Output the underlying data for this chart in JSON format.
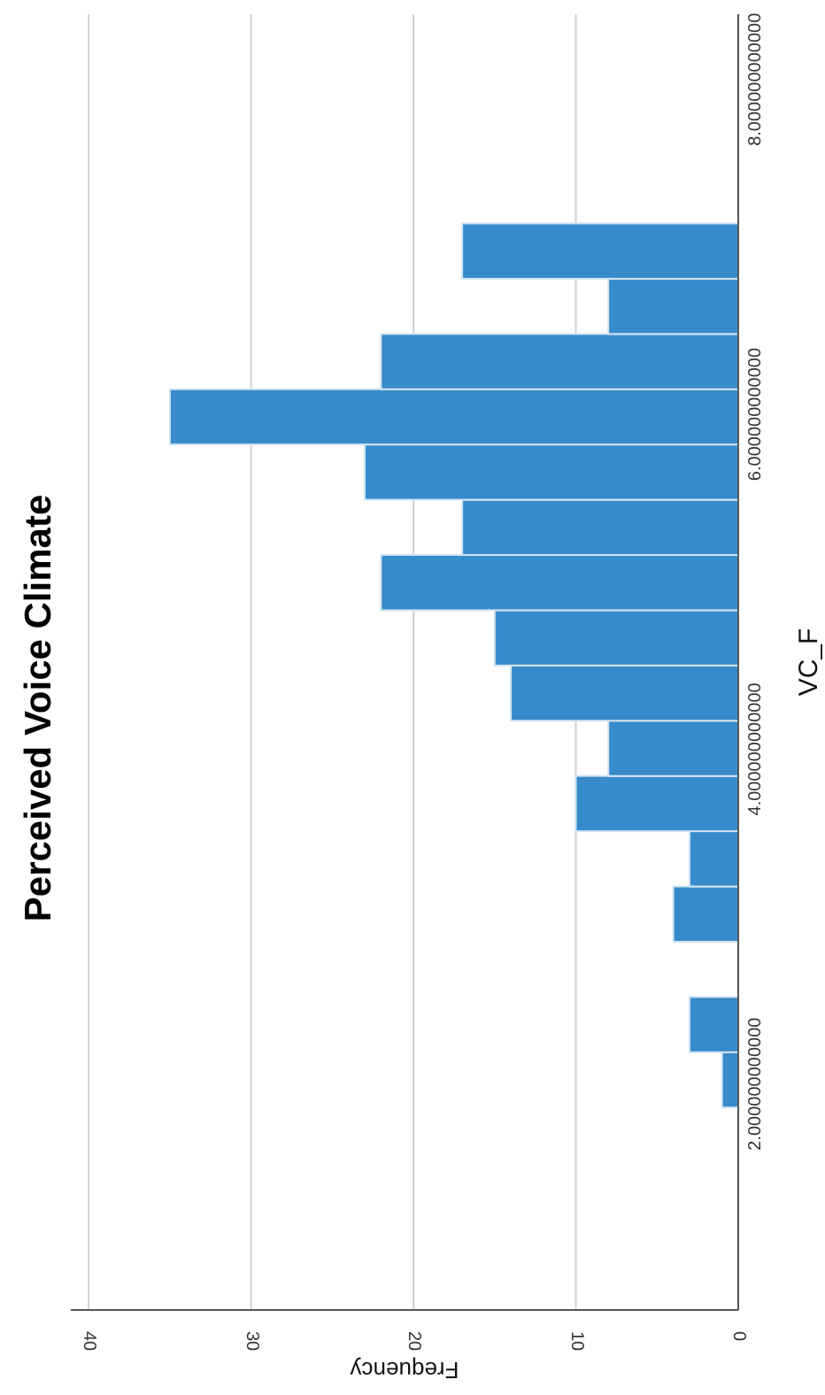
{
  "chart_data": {
    "type": "histogram",
    "title": "Perceived Voice Climate",
    "xlabel": "Frequency",
    "ylabel": "VC_F",
    "orientation": "horizontal",
    "bins": [
      1.86,
      2.19,
      2.52,
      2.85,
      3.18,
      3.51,
      3.84,
      4.17,
      4.5,
      4.83,
      5.16,
      5.49,
      5.82,
      6.15,
      6.48,
      6.81,
      7.14
    ],
    "values": [
      1,
      3,
      0,
      4,
      3,
      10,
      8,
      14,
      15,
      22,
      17,
      23,
      35,
      22,
      8,
      17
    ],
    "color": "#388bcb",
    "xlim": [
      41.1,
      0
    ],
    "xticks": [
      0,
      10,
      20,
      30,
      40
    ],
    "ylim": [
      0.65,
      8.39
    ],
    "yticks": [
      {
        "value": 2,
        "label": "2.000000000000"
      },
      {
        "value": 4,
        "label": "4.000000000000"
      },
      {
        "value": 6,
        "label": "6.000000000000"
      },
      {
        "value": 8,
        "label": "8.000000000000"
      }
    ],
    "grid": "x"
  }
}
